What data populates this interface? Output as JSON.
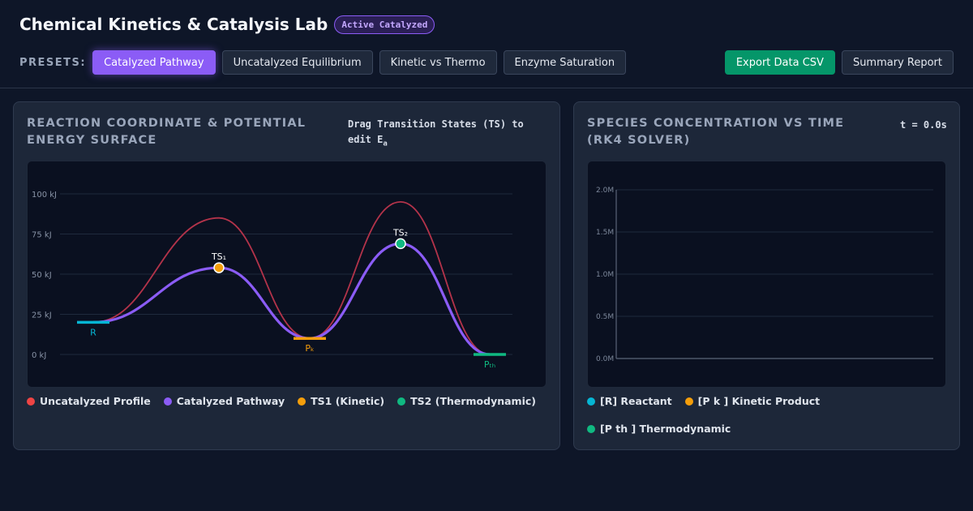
{
  "header": {
    "title": "Chemical Kinetics & Catalysis Lab",
    "badge": "Active Catalyzed"
  },
  "presets": {
    "label": "PRESETS:",
    "buttons": [
      "Catalyzed Pathway",
      "Uncatalyzed Equilibrium",
      "Kinetic vs Thermo",
      "Enzyme Saturation"
    ],
    "active_index": 0
  },
  "actions": {
    "export_label": "Export Data CSV",
    "summary_label": "Summary Report"
  },
  "energy_panel": {
    "title": "REACTION COORDINATE & POTENTIAL ENERGY SURFACE",
    "hint": "Drag Transition States (TS) to edit E",
    "hint_sub": "a",
    "legend": [
      {
        "label": "Uncatalyzed Profile",
        "color": "#ef4444"
      },
      {
        "label": "Catalyzed Pathway",
        "color": "#8b5cf6"
      },
      {
        "label": "TS1 (Kinetic)",
        "color": "#f59e0b"
      },
      {
        "label": "TS2 (Thermodynamic)",
        "color": "#10b981"
      }
    ]
  },
  "conc_panel": {
    "title": "SPECIES CONCENTRATION VS TIME (RK4 SOLVER)",
    "time": "t = 0.0s",
    "legend": [
      {
        "label": "[R] Reactant",
        "color": "#06b6d4"
      },
      {
        "label": "[P k ] Kinetic Product",
        "color": "#f59e0b"
      },
      {
        "label": "[P th ] Thermodynamic",
        "color": "#10b981"
      }
    ]
  },
  "chart_data": [
    {
      "type": "line",
      "ylabel": "",
      "y_ticks": [
        "0 kJ",
        "25 kJ",
        "50 kJ",
        "75 kJ",
        "100 kJ"
      ],
      "ylim": [
        0,
        100
      ],
      "grid": true,
      "points": [
        {
          "label": "R",
          "x": 0,
          "y": 20,
          "color": "#06b6d4"
        },
        {
          "label": "TS₁",
          "x": 1,
          "y": 54,
          "color": "#f59e0b"
        },
        {
          "label": "Pₖ",
          "x": 2,
          "y": 10,
          "color": "#f59e0b"
        },
        {
          "label": "TS₂",
          "x": 3,
          "y": 69,
          "color": "#10b981"
        },
        {
          "label": "Pₜₕ",
          "x": 4,
          "y": 0,
          "color": "#10b981"
        }
      ],
      "series": [
        {
          "name": "Uncatalyzed Profile",
          "y": [
            20,
            85,
            10,
            95,
            0
          ],
          "color": "#b3334a"
        },
        {
          "name": "Catalyzed Pathway",
          "y": [
            20,
            54,
            10,
            69,
            0
          ],
          "color": "#8b5cf6"
        }
      ]
    },
    {
      "type": "line",
      "y_ticks": [
        "0.0M",
        "0.5M",
        "1.0M",
        "1.5M",
        "2.0M"
      ],
      "ylim": [
        0,
        2.0
      ],
      "grid": true,
      "series": []
    }
  ]
}
